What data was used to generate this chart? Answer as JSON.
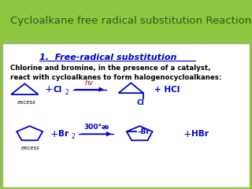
{
  "header_text": "Cycloalkane free radical substitution Reaction",
  "header_bg": "#8dc63f",
  "header_text_color": "#2d5a1b",
  "title_text": "1.  Free-radical substitution",
  "title_color": "#00008B",
  "body_text_color": "#000000",
  "blue_color": "#0000CC",
  "red_color": "#CC0000",
  "desc_line1": "Chlorine and bromine, in the presence of a catalyst,",
  "desc_line2": "react with cycloalkanes to form halogenocycloalkanes:",
  "rxn1_excess": "excess",
  "rxn1_cl2": "Cl",
  "rxn1_cl2_sub": "2",
  "rxn1_hv": "hv",
  "rxn1_hcl": "+ HCl",
  "rxn1_cl_label": "Cl",
  "rxn2_br2": "Br",
  "rxn2_br2_sub": "2",
  "rxn2_arrow_label": "300°æ",
  "rxn2_br_label": "–Br",
  "rxn2_hbr": "HBr",
  "rxn2_excess": "excess"
}
